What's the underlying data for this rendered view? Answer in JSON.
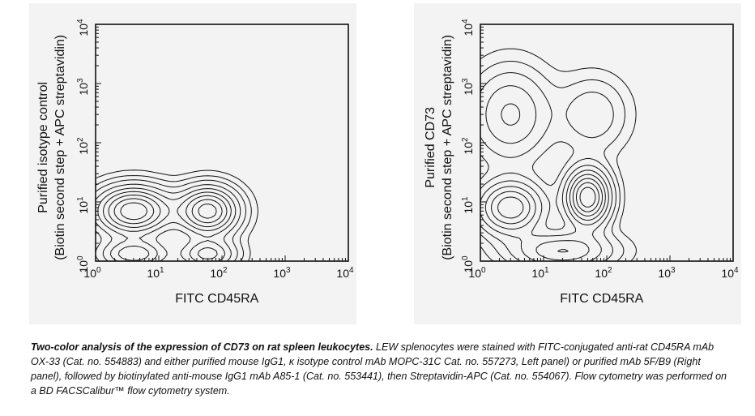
{
  "caption": {
    "bold": "Two-color analysis of the expression of CD73 on rat spleen leukocytes.",
    "text": " LEW splenocytes were stained with FITC-conjugated anti-rat CD45RA mAb OX-33 (Cat. no. 554883) and either purified mouse IgG1, κ isotype control mAb MOPC-31C Cat. no. 557273, Left panel) or purified mAb 5F/B9 (Right panel), followed by biotinylated anti-mouse IgG1 mAb A85-1 (Cat. no. 553441), then Streptavidin-APC (Cat. no. 554067). Flow cytometry was performed on a BD FACSCalibur™ flow cytometry system."
  },
  "colors": {
    "panel_bg": "#f3f3f3",
    "ink": "#111111"
  },
  "chart_data": [
    {
      "type": "contour",
      "panel": "left",
      "xlabel": "FITC CD45RA",
      "ylabel_line1": "Purified isotype control",
      "ylabel_line2": "(Biotin second step + APC streptavidin)",
      "x_scale": "log",
      "y_scale": "log",
      "xlim": [
        1,
        10000
      ],
      "ylim": [
        1,
        10000
      ],
      "tick_base": "10",
      "tick_exponents": [
        "0",
        "1",
        "2",
        "3",
        "4"
      ],
      "populations": [
        {
          "x": 4,
          "y": 7,
          "sx": 0.38,
          "sy": 0.26,
          "w": 1.0
        },
        {
          "x": 60,
          "y": 7,
          "sx": 0.3,
          "sy": 0.26,
          "w": 0.95
        },
        {
          "x": 4,
          "y": 1.3,
          "sx": 0.35,
          "sy": 0.16,
          "w": 0.55
        },
        {
          "x": 60,
          "y": 1.3,
          "sx": 0.28,
          "sy": 0.16,
          "w": 0.5
        }
      ]
    },
    {
      "type": "contour",
      "panel": "right",
      "xlabel": "FITC CD45RA",
      "ylabel_line1": "Purified CD73",
      "ylabel_line2": "(Biotin second step + APC streptavidin)",
      "x_scale": "log",
      "y_scale": "log",
      "xlim": [
        1,
        10000
      ],
      "ylim": [
        1,
        10000
      ],
      "tick_base": "10",
      "tick_exponents": [
        "0",
        "1",
        "2",
        "3",
        "4"
      ],
      "populations": [
        {
          "x": 50,
          "y": 12,
          "sx": 0.22,
          "sy": 0.3,
          "w": 1.0
        },
        {
          "x": 3,
          "y": 8,
          "sx": 0.32,
          "sy": 0.28,
          "w": 0.7
        },
        {
          "x": 3,
          "y": 300,
          "sx": 0.4,
          "sy": 0.5,
          "w": 0.35
        },
        {
          "x": 20,
          "y": 1.5,
          "sx": 0.5,
          "sy": 0.2,
          "w": 0.45
        },
        {
          "x": 60,
          "y": 300,
          "sx": 0.35,
          "sy": 0.4,
          "w": 0.2
        }
      ]
    }
  ]
}
